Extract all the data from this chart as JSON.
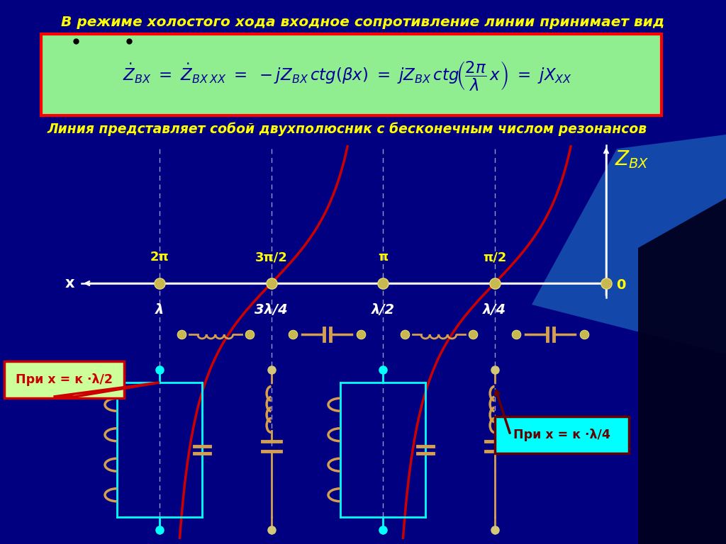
{
  "title_text": "В режиме холостого хода входное сопротивление линии принимает вид",
  "subtitle_text": "Линия представляет собой двухполюсник с бесконечным числом резонансов",
  "bg_color": "#0000AA",
  "title_color": "#FFFF00",
  "formula_box_color": "#90EE90",
  "formula_border_color": "#FF0000",
  "axis_color": "#FFFFFF",
  "curve_color": "#CC0000",
  "label_color": "#FFFF00",
  "white_label_color": "#FFFFFF",
  "zvx_label": "$Z_{BX}$",
  "x_axis_label": "x",
  "zero_label": "0",
  "note1_text": "При x = к ·λ/2",
  "note2_text": "При x = к ·λ/4",
  "note1_bg": "#CCFF99",
  "note1_border": "#CC0000",
  "note1_text_color": "#CC0000",
  "note2_bg": "#00FFFF",
  "note2_border": "#660000",
  "note2_text_color": "#660000",
  "beta_labels": [
    "2π",
    "3π/2",
    "π",
    "π/2"
  ],
  "lambda_labels": [
    "λ",
    "3λ/4",
    "λ/2",
    "λ/4"
  ],
  "beta_vals": [
    2.0,
    1.5,
    1.0,
    0.5
  ]
}
